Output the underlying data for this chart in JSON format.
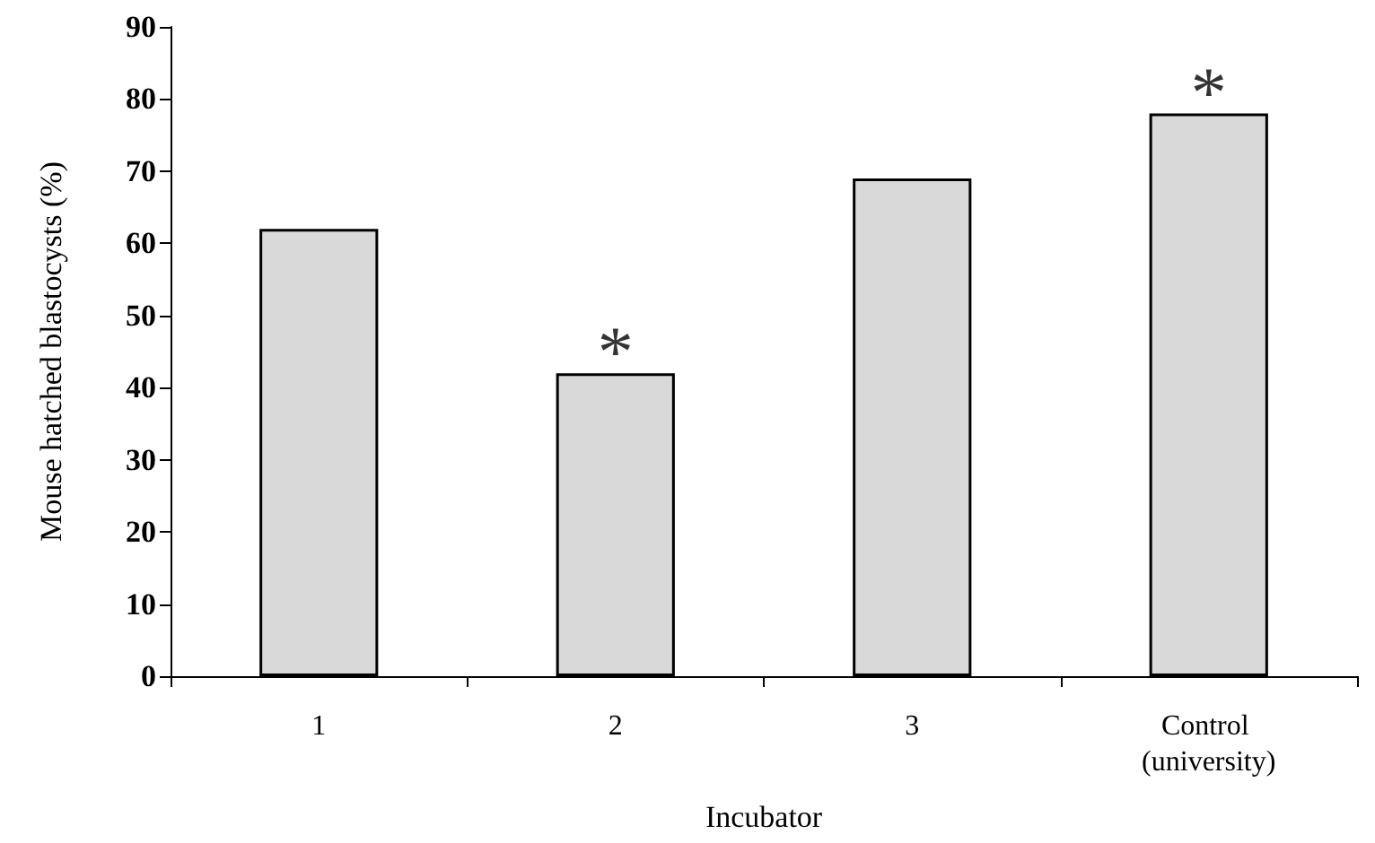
{
  "chart_data": {
    "type": "bar",
    "xlabel": "Incubator",
    "ylabel": "Mouse hatched blastocysts (%)",
    "categories": [
      "1",
      "2",
      "3",
      "Control (university)"
    ],
    "values": [
      62,
      42,
      69,
      78
    ],
    "color": "#d9d9d9",
    "ylim": [
      0,
      90
    ],
    "yticks": [
      0,
      10,
      20,
      30,
      40,
      50,
      60,
      70,
      80,
      90
    ],
    "grid": false,
    "annotations": [
      {
        "text": "*",
        "x": "2",
        "y": 42
      },
      {
        "text": "*",
        "x": "Control (university)",
        "y": 78
      }
    ]
  }
}
